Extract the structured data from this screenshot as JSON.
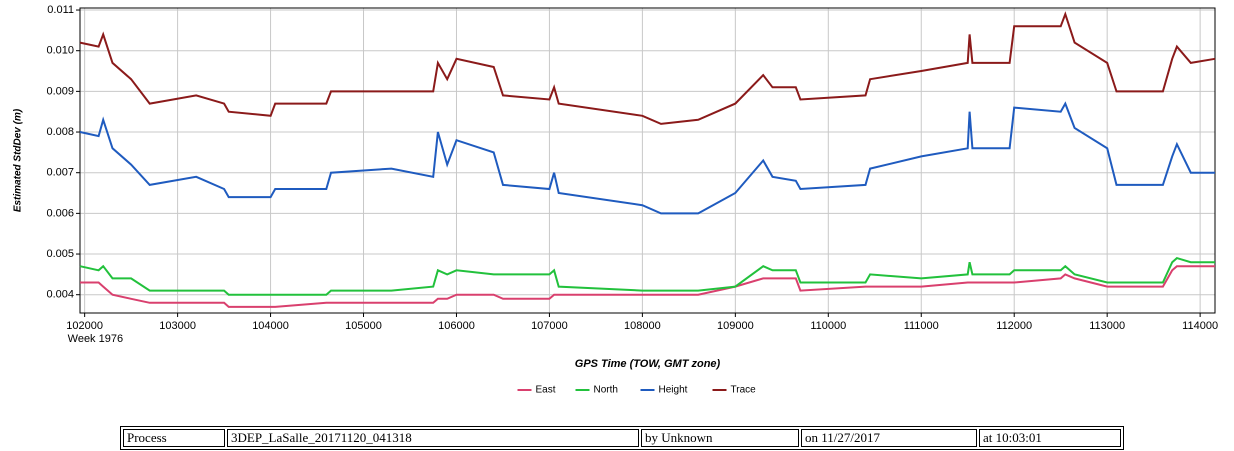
{
  "chart_data": {
    "type": "line",
    "y_label": "Estimated StdDev (m)",
    "x_label": "GPS Time (TOW, GMT zone)",
    "x_sublabel": "Week 1976",
    "xlim": [
      101950,
      114160
    ],
    "xticks": [
      102000,
      103000,
      104000,
      105000,
      106000,
      107000,
      108000,
      109000,
      110000,
      111000,
      112000,
      113000,
      114000
    ],
    "ylim": [
      0.00355,
      0.01105
    ],
    "yticks": [
      0.004,
      0.005,
      0.006,
      0.007,
      0.008,
      0.009,
      {
        "value": 0.01,
        "label": "0.010"
      },
      0.011
    ],
    "grid": true,
    "legend": "bottom",
    "x": [
      101950,
      102150,
      102200,
      102300,
      102500,
      102700,
      103200,
      103500,
      103550,
      104000,
      104050,
      104600,
      104650,
      105300,
      105750,
      105800,
      105900,
      106000,
      106400,
      106500,
      107000,
      107050,
      107100,
      108000,
      108200,
      108600,
      109000,
      109300,
      109400,
      109650,
      109700,
      110400,
      110450,
      111000,
      111500,
      111520,
      111550,
      111950,
      112000,
      112500,
      112550,
      112650,
      113000,
      113100,
      113600,
      113700,
      113750,
      113900,
      114160
    ],
    "series": [
      {
        "name": "East",
        "color": "#d9406e",
        "values": [
          0.0043,
          0.0043,
          0.0042,
          0.004,
          0.0039,
          0.0038,
          0.0038,
          0.0038,
          0.0037,
          0.0037,
          0.0037,
          0.0038,
          0.0038,
          0.0038,
          0.0038,
          0.0039,
          0.0039,
          0.004,
          0.004,
          0.0039,
          0.0039,
          0.004,
          0.004,
          0.004,
          0.004,
          0.004,
          0.0042,
          0.0044,
          0.0044,
          0.0044,
          0.0041,
          0.0042,
          0.0042,
          0.0042,
          0.0043,
          0.0043,
          0.0043,
          0.0043,
          0.0043,
          0.0044,
          0.0045,
          0.0044,
          0.0042,
          0.0042,
          0.0042,
          0.0046,
          0.0047,
          0.0047,
          0.0047
        ]
      },
      {
        "name": "North",
        "color": "#22c13c",
        "values": [
          0.0047,
          0.0046,
          0.0047,
          0.0044,
          0.0044,
          0.0041,
          0.0041,
          0.0041,
          0.004,
          0.004,
          0.004,
          0.004,
          0.0041,
          0.0041,
          0.0042,
          0.0046,
          0.0045,
          0.0046,
          0.0045,
          0.0045,
          0.0045,
          0.0046,
          0.0042,
          0.0041,
          0.0041,
          0.0041,
          0.0042,
          0.0047,
          0.0046,
          0.0046,
          0.0043,
          0.0043,
          0.0045,
          0.0044,
          0.0045,
          0.0048,
          0.0045,
          0.0045,
          0.0046,
          0.0046,
          0.0047,
          0.0045,
          0.0043,
          0.0043,
          0.0043,
          0.0048,
          0.0049,
          0.0048,
          0.0048
        ]
      },
      {
        "name": "Height",
        "color": "#1f5bbf",
        "values": [
          0.008,
          0.0079,
          0.0083,
          0.0076,
          0.0072,
          0.0067,
          0.0069,
          0.0066,
          0.0064,
          0.0064,
          0.0066,
          0.0066,
          0.007,
          0.0071,
          0.0069,
          0.008,
          0.0072,
          0.0078,
          0.0075,
          0.0067,
          0.0066,
          0.007,
          0.0065,
          0.0062,
          0.006,
          0.006,
          0.0065,
          0.0073,
          0.0069,
          0.0068,
          0.0066,
          0.0067,
          0.0071,
          0.0074,
          0.0076,
          0.0085,
          0.0076,
          0.0076,
          0.0086,
          0.0085,
          0.0087,
          0.0081,
          0.0076,
          0.0067,
          0.0067,
          0.0074,
          0.0077,
          0.007,
          0.007
        ]
      },
      {
        "name": "Trace",
        "color": "#8b1a1a",
        "values": [
          0.0102,
          0.0101,
          0.0104,
          0.0097,
          0.0093,
          0.0087,
          0.0089,
          0.0087,
          0.0085,
          0.0084,
          0.0087,
          0.0087,
          0.009,
          0.009,
          0.009,
          0.0097,
          0.0093,
          0.0098,
          0.0096,
          0.0089,
          0.0088,
          0.0091,
          0.0087,
          0.0084,
          0.0082,
          0.0083,
          0.0087,
          0.0094,
          0.0091,
          0.0091,
          0.0088,
          0.0089,
          0.0093,
          0.0095,
          0.0097,
          0.0104,
          0.0097,
          0.0097,
          0.0106,
          0.0106,
          0.0109,
          0.0102,
          0.0097,
          0.009,
          0.009,
          0.0098,
          0.0101,
          0.0097,
          0.0098
        ]
      }
    ]
  },
  "footer": {
    "cells": [
      "Process",
      "3DEP_LaSalle_20171120_041318",
      "by Unknown",
      "on 11/27/2017",
      "at 10:03:01"
    ]
  }
}
